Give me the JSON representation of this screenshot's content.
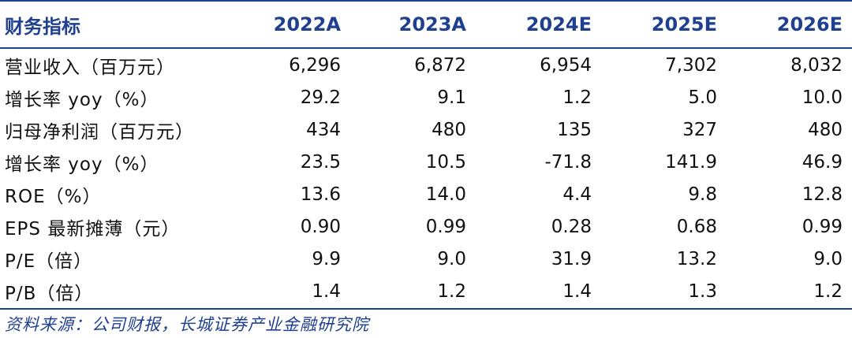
{
  "table": {
    "header": {
      "label": "财务指标",
      "years": [
        "2022A",
        "2023A",
        "2024E",
        "2025E",
        "2026E"
      ]
    },
    "rows": [
      {
        "label": "营业收入（百万元）",
        "values": [
          "6,296",
          "6,872",
          "6,954",
          "7,302",
          "8,032"
        ]
      },
      {
        "label": "增长率 yoy（%）",
        "values": [
          "29.2",
          "9.1",
          "1.2",
          "5.0",
          "10.0"
        ]
      },
      {
        "label": "归母净利润（百万元）",
        "values": [
          "434",
          "480",
          "135",
          "327",
          "480"
        ]
      },
      {
        "label": "增长率 yoy（%）",
        "values": [
          "23.5",
          "10.5",
          "-71.8",
          "141.9",
          "46.9"
        ]
      },
      {
        "label": "ROE（%）",
        "values": [
          "13.6",
          "14.0",
          "4.4",
          "9.8",
          "12.8"
        ]
      },
      {
        "label": "EPS 最新摊薄（元）",
        "values": [
          "0.90",
          "0.99",
          "0.28",
          "0.68",
          "0.99"
        ]
      },
      {
        "label": "P/E（倍）",
        "values": [
          "9.9",
          "9.0",
          "31.9",
          "13.2",
          "9.0"
        ]
      },
      {
        "label": "P/B（倍）",
        "values": [
          "1.4",
          "1.2",
          "1.4",
          "1.3",
          "1.2"
        ]
      }
    ]
  },
  "source": "资料来源：公司财报，长城证券产业金融研究院"
}
